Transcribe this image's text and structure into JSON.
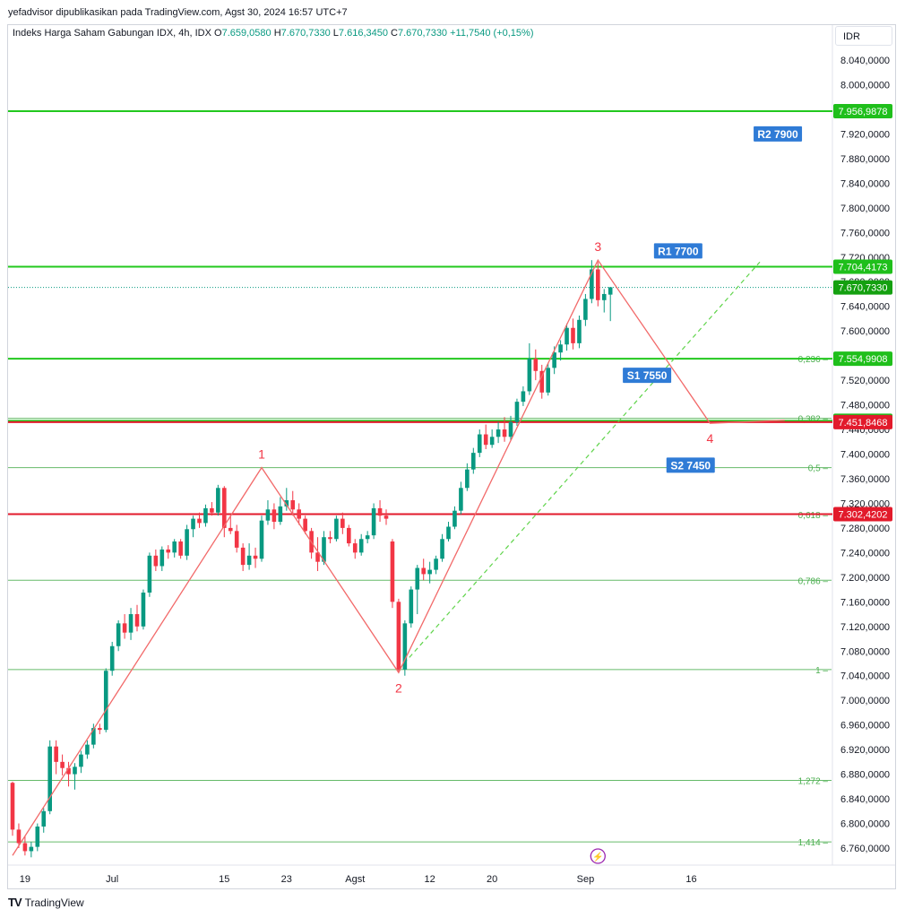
{
  "attribution": "yefadvisor dipublikasikan pada TradingView.com, Agst 30, 2024 16:57 UTC+7",
  "legend": {
    "symbol": "Indeks Harga Saham Gabungan IDX, 4h, IDX",
    "o_label": "O",
    "o": "7.659,0580",
    "h_label": "H",
    "h": "7.670,7330",
    "l_label": "L",
    "l": "7.616,3450",
    "c_label": "C",
    "c": "7.670,7330",
    "change": "+11,7540 (+0,15%)"
  },
  "currency": "IDR",
  "footer": {
    "logo": "TV",
    "brand": "TradingView"
  },
  "colors": {
    "up": "#089981",
    "down": "#f23645",
    "green_line": "#22c81e",
    "red_line": "#e21a2b",
    "wave": "#f26a6a",
    "label_blue": "#2f7bd6"
  },
  "chart_data": {
    "type": "candlestick",
    "ylim": [
      6740,
      8060
    ],
    "y_ticks": [
      "8.040,0000",
      "8.000,0000",
      "7.960,0000",
      "7.920,0000",
      "7.880,0000",
      "7.840,0000",
      "7.800,0000",
      "7.760,0000",
      "7.720,0000",
      "7.680,0000",
      "7.640,0000",
      "7.600,0000",
      "7.560,0000",
      "7.520,0000",
      "7.480,0000",
      "7.440,0000",
      "7.400,0000",
      "7.360,0000",
      "7.320,0000",
      "7.280,0000",
      "7.240,0000",
      "7.200,0000",
      "7.160,0000",
      "7.120,0000",
      "7.080,0000",
      "7.040,0000",
      "7.000,0000",
      "6.960,0000",
      "6.920,0000",
      "6.880,0000",
      "6.840,0000",
      "6.800,0000",
      "6.760,0000"
    ],
    "x_ticks": [
      {
        "label": "19",
        "i": 2
      },
      {
        "label": "Jul",
        "i": 16
      },
      {
        "label": "15",
        "i": 34
      },
      {
        "label": "23",
        "i": 44
      },
      {
        "label": "Agst",
        "i": 55
      },
      {
        "label": "12",
        "i": 67
      },
      {
        "label": "20",
        "i": 77
      },
      {
        "label": "Sep",
        "i": 92
      },
      {
        "label": "16",
        "i": 109
      }
    ],
    "candles": [
      [
        6866,
        6868,
        6780,
        6790
      ],
      [
        6790,
        6800,
        6760,
        6768
      ],
      [
        6768,
        6780,
        6748,
        6755
      ],
      [
        6755,
        6770,
        6745,
        6762
      ],
      [
        6762,
        6800,
        6755,
        6795
      ],
      [
        6795,
        6825,
        6785,
        6820
      ],
      [
        6820,
        6935,
        6815,
        6925
      ],
      [
        6925,
        6935,
        6880,
        6900
      ],
      [
        6900,
        6912,
        6878,
        6890
      ],
      [
        6890,
        6900,
        6860,
        6880
      ],
      [
        6880,
        6898,
        6855,
        6892
      ],
      [
        6892,
        6918,
        6882,
        6912
      ],
      [
        6912,
        6935,
        6905,
        6928
      ],
      [
        6928,
        6962,
        6922,
        6955
      ],
      [
        6955,
        6962,
        6945,
        6952
      ],
      [
        6952,
        7052,
        6948,
        7048
      ],
      [
        7048,
        7095,
        7040,
        7088
      ],
      [
        7088,
        7130,
        7080,
        7125
      ],
      [
        7125,
        7140,
        7100,
        7110
      ],
      [
        7110,
        7150,
        7098,
        7140
      ],
      [
        7140,
        7155,
        7112,
        7120
      ],
      [
        7120,
        7180,
        7115,
        7175
      ],
      [
        7175,
        7240,
        7168,
        7235
      ],
      [
        7235,
        7245,
        7210,
        7218
      ],
      [
        7218,
        7250,
        7210,
        7245
      ],
      [
        7245,
        7252,
        7230,
        7240
      ],
      [
        7240,
        7262,
        7232,
        7258
      ],
      [
        7258,
        7262,
        7230,
        7235
      ],
      [
        7235,
        7285,
        7228,
        7278
      ],
      [
        7278,
        7300,
        7265,
        7295
      ],
      [
        7295,
        7305,
        7280,
        7288
      ],
      [
        7288,
        7318,
        7282,
        7312
      ],
      [
        7312,
        7322,
        7300,
        7305
      ],
      [
        7305,
        7350,
        7300,
        7345
      ],
      [
        7345,
        7348,
        7265,
        7280
      ],
      [
        7280,
        7300,
        7270,
        7275
      ],
      [
        7275,
        7285,
        7240,
        7248
      ],
      [
        7248,
        7255,
        7210,
        7220
      ],
      [
        7220,
        7255,
        7212,
        7235
      ],
      [
        7235,
        7248,
        7215,
        7230
      ],
      [
        7230,
        7300,
        7225,
        7292
      ],
      [
        7292,
        7325,
        7285,
        7310
      ],
      [
        7310,
        7320,
        7278,
        7290
      ],
      [
        7290,
        7330,
        7285,
        7315
      ],
      [
        7315,
        7345,
        7308,
        7325
      ],
      [
        7325,
        7340,
        7300,
        7310
      ],
      [
        7310,
        7320,
        7285,
        7295
      ],
      [
        7295,
        7300,
        7270,
        7275
      ],
      [
        7275,
        7280,
        7230,
        7240
      ],
      [
        7240,
        7265,
        7210,
        7225
      ],
      [
        7225,
        7275,
        7220,
        7265
      ],
      [
        7265,
        7275,
        7255,
        7262
      ],
      [
        7262,
        7300,
        7258,
        7295
      ],
      [
        7295,
        7305,
        7270,
        7280
      ],
      [
        7280,
        7285,
        7250,
        7255
      ],
      [
        7255,
        7262,
        7230,
        7240
      ],
      [
        7240,
        7270,
        7235,
        7262
      ],
      [
        7262,
        7275,
        7255,
        7268
      ],
      [
        7268,
        7320,
        7262,
        7312
      ],
      [
        7312,
        7325,
        7290,
        7300
      ],
      [
        7300,
        7310,
        7285,
        7295
      ],
      [
        7258,
        7262,
        7150,
        7160
      ],
      [
        7160,
        7165,
        7045,
        7050
      ],
      [
        7050,
        7130,
        7040,
        7125
      ],
      [
        7125,
        7185,
        7118,
        7180
      ],
      [
        7180,
        7220,
        7140,
        7215
      ],
      [
        7215,
        7230,
        7195,
        7205
      ],
      [
        7205,
        7225,
        7190,
        7212
      ],
      [
        7212,
        7235,
        7205,
        7230
      ],
      [
        7230,
        7270,
        7225,
        7262
      ],
      [
        7262,
        7290,
        7258,
        7282
      ],
      [
        7282,
        7315,
        7278,
        7308
      ],
      [
        7308,
        7355,
        7302,
        7345
      ],
      [
        7345,
        7385,
        7340,
        7375
      ],
      [
        7375,
        7410,
        7368,
        7402
      ],
      [
        7402,
        7440,
        7395,
        7432
      ],
      [
        7432,
        7448,
        7408,
        7415
      ],
      [
        7415,
        7440,
        7410,
        7428
      ],
      [
        7428,
        7452,
        7418,
        7440
      ],
      [
        7440,
        7460,
        7420,
        7428
      ],
      [
        7428,
        7462,
        7422,
        7452
      ],
      [
        7452,
        7490,
        7446,
        7485
      ],
      [
        7485,
        7510,
        7478,
        7502
      ],
      [
        7502,
        7580,
        7496,
        7555
      ],
      [
        7555,
        7570,
        7520,
        7535
      ],
      [
        7535,
        7545,
        7490,
        7500
      ],
      [
        7500,
        7548,
        7495,
        7540
      ],
      [
        7540,
        7575,
        7530,
        7565
      ],
      [
        7565,
        7585,
        7552,
        7578
      ],
      [
        7578,
        7612,
        7568,
        7605
      ],
      [
        7605,
        7620,
        7570,
        7580
      ],
      [
        7580,
        7625,
        7572,
        7618
      ],
      [
        7618,
        7660,
        7608,
        7652
      ],
      [
        7652,
        7715,
        7645,
        7700
      ],
      [
        7700,
        7712,
        7640,
        7650
      ],
      [
        7650,
        7668,
        7630,
        7660
      ],
      [
        7659,
        7671,
        7616,
        7671
      ]
    ],
    "indices_note": "",
    "wave_points": [
      {
        "i": 0,
        "v": 6748
      },
      {
        "i": 40,
        "v": 7378,
        "label": "1"
      },
      {
        "i": 62,
        "v": 7045,
        "label": "2"
      },
      {
        "i": 94,
        "v": 7715,
        "label": "3"
      },
      {
        "i": 112,
        "v": 7450,
        "label": "4"
      },
      {
        "i": 124,
        "v": 7455
      }
    ],
    "projection": [
      {
        "i": 62,
        "v": 7050
      },
      {
        "i": 120,
        "v": 7712
      }
    ],
    "hlines": [
      {
        "v": 7956.9878,
        "label": "7.956,9878",
        "color": "#22c81e",
        "width": 2
      },
      {
        "v": 7704.4173,
        "label": "7.704,4173",
        "color": "#22c81e",
        "width": 2
      },
      {
        "v": 7554.9908,
        "label": "7.554,9908",
        "color": "#22c81e",
        "width": 2
      },
      {
        "v": 7454.0223,
        "label": "7.454,0223",
        "color": "#22c81e",
        "width": 2
      },
      {
        "v": 7451.8468,
        "label": "7.451,8468",
        "color": "#e21a2b",
        "width": 2
      },
      {
        "v": 7302.4202,
        "label": "7.302,4202",
        "color": "#e21a2b",
        "width": 2
      }
    ],
    "fib_levels": [
      {
        "v": 7554.99,
        "label": "0,236"
      },
      {
        "v": 7458,
        "label": "0,382"
      },
      {
        "v": 7378,
        "label": "0,5"
      },
      {
        "v": 7302,
        "label": "0,618"
      },
      {
        "v": 7195,
        "label": "0,786"
      },
      {
        "v": 7050,
        "label": "1"
      },
      {
        "v": 6870,
        "label": "1,272"
      },
      {
        "v": 6770,
        "label": "1,414"
      }
    ],
    "last_price": {
      "v": 7670.733,
      "label": "7.670,7330",
      "color": "#089981"
    },
    "level_labels": [
      {
        "text": "R2 7900",
        "i": 119,
        "v": 7920
      },
      {
        "text": "R1 7700",
        "i": 103,
        "v": 7730
      },
      {
        "text": "S1 7550",
        "i": 98,
        "v": 7528
      },
      {
        "text": "S2 7450",
        "i": 105,
        "v": 7382
      }
    ]
  }
}
